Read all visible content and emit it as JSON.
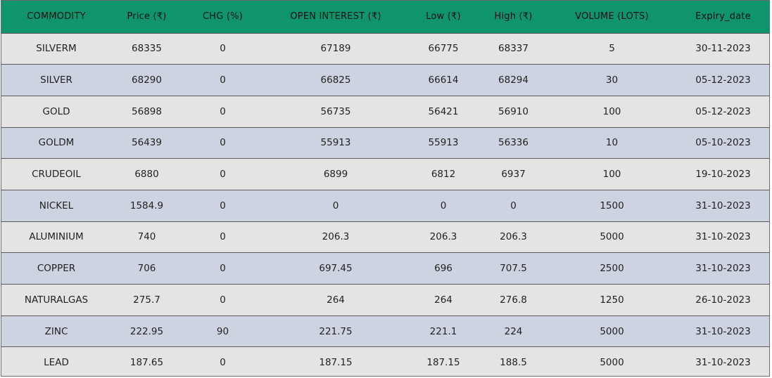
{
  "table": {
    "headers": [
      "COMMODITY",
      "Price (₹)",
      "CHG (%)",
      "OPEN INTEREST (₹)",
      "Low (₹)",
      "High (₹)",
      "VOLUME (LOTS)",
      "Expiry_date"
    ],
    "rows": [
      [
        "SILVERM",
        "68335",
        "0",
        "67189",
        "66775",
        "68337",
        "5",
        "30-11-2023"
      ],
      [
        "SILVER",
        "68290",
        "0",
        "66825",
        "66614",
        "68294",
        "30",
        "05-12-2023"
      ],
      [
        "GOLD",
        "56898",
        "0",
        "56735",
        "56421",
        "56910",
        "100",
        "05-12-2023"
      ],
      [
        "GOLDM",
        "56439",
        "0",
        "55913",
        "55913",
        "56336",
        "10",
        "05-10-2023"
      ],
      [
        "CRUDEOIL",
        "6880",
        "0",
        "6899",
        "6812",
        "6937",
        "100",
        "19-10-2023"
      ],
      [
        "NICKEL",
        "1584.9",
        "0",
        "0",
        "0",
        "0",
        "1500",
        "31-10-2023"
      ],
      [
        "ALUMINIUM",
        "740",
        "0",
        "206.3",
        "206.3",
        "206.3",
        "5000",
        "31-10-2023"
      ],
      [
        "COPPER",
        "706",
        "0",
        "697.45",
        "696",
        "707.5",
        "2500",
        "31-10-2023"
      ],
      [
        "NATURALGAS",
        "275.7",
        "0",
        "264",
        "264",
        "276.8",
        "1250",
        "26-10-2023"
      ],
      [
        "ZINC",
        "222.95",
        "90",
        "221.75",
        "221.1",
        "224",
        "5000",
        "31-10-2023"
      ],
      [
        "LEAD",
        "187.65",
        "0",
        "187.15",
        "187.15",
        "188.5",
        "5000",
        "31-10-2023"
      ]
    ]
  },
  "colors": {
    "header_bg": "#0f946d",
    "row_odd_bg": "#e4e4e4",
    "row_even_bg": "#cdd3e0",
    "border": "#5a5a5a"
  }
}
